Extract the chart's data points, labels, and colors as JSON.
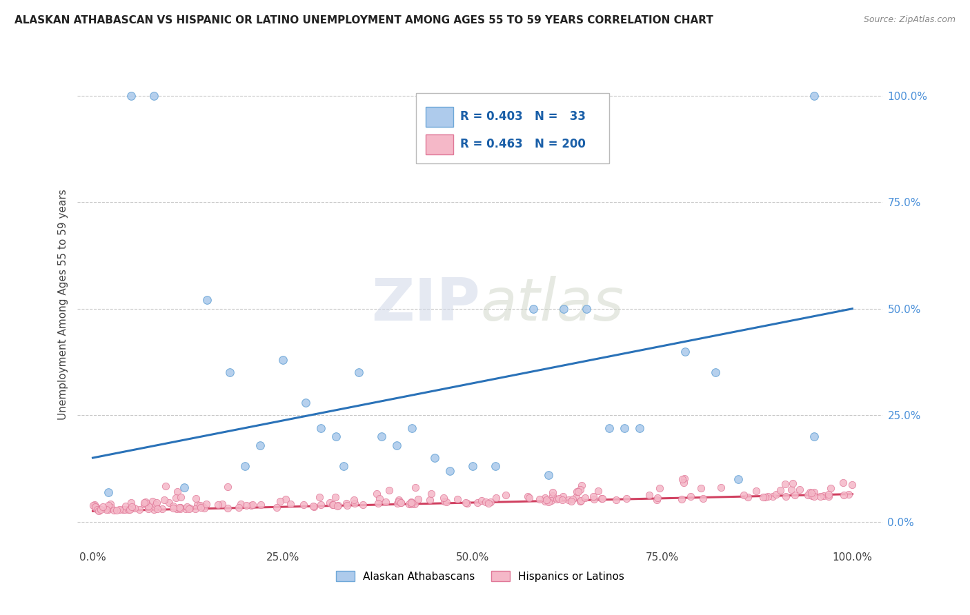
{
  "title": "ALASKAN ATHABASCAN VS HISPANIC OR LATINO UNEMPLOYMENT AMONG AGES 55 TO 59 YEARS CORRELATION CHART",
  "source": "Source: ZipAtlas.com",
  "ylabel": "Unemployment Among Ages 55 to 59 years",
  "x_tick_labels": [
    "0.0%",
    "25.0%",
    "50.0%",
    "75.0%",
    "100.0%"
  ],
  "x_tick_vals": [
    0,
    25,
    50,
    75,
    100
  ],
  "y_tick_labels": [
    "0.0%",
    "25.0%",
    "50.0%",
    "75.0%",
    "100.0%"
  ],
  "y_tick_vals": [
    0,
    25,
    50,
    75,
    100
  ],
  "xlim": [
    -2,
    104
  ],
  "ylim": [
    -6,
    108
  ],
  "blue_color": "#aecbec",
  "blue_edge": "#6fa8d8",
  "pink_color": "#f5b8c8",
  "pink_edge": "#e07898",
  "trend_blue": "#2a72b8",
  "trend_pink": "#d04060",
  "R_blue": 0.403,
  "N_blue": 33,
  "R_pink": 0.463,
  "N_pink": 200,
  "legend_label_blue": "Alaskan Athabascans",
  "legend_label_pink": "Hispanics or Latinos",
  "watermark_zip": "ZIP",
  "watermark_atlas": "atlas",
  "background_color": "#ffffff",
  "grid_color": "#c8c8c8",
  "blue_trend_x0": 0,
  "blue_trend_y0": 15,
  "blue_trend_x1": 100,
  "blue_trend_y1": 50,
  "pink_trend_x0": 0,
  "pink_trend_y0": 2.5,
  "pink_trend_x1": 100,
  "pink_trend_y1": 6.5,
  "blue_scatter_x": [
    5,
    8,
    2,
    12,
    15,
    18,
    20,
    22,
    25,
    28,
    30,
    32,
    33,
    35,
    38,
    40,
    42,
    45,
    47,
    50,
    53,
    58,
    60,
    62,
    65,
    68,
    70,
    72,
    78,
    82,
    85,
    95,
    95
  ],
  "blue_scatter_y": [
    100,
    100,
    7,
    8,
    52,
    35,
    13,
    18,
    38,
    28,
    22,
    20,
    13,
    35,
    20,
    18,
    22,
    15,
    12,
    13,
    13,
    50,
    11,
    50,
    50,
    22,
    22,
    22,
    40,
    35,
    10,
    20,
    100
  ]
}
